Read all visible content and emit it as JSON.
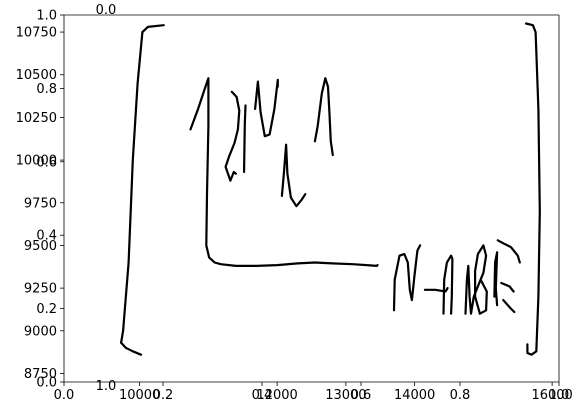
{
  "chart_data": {
    "type": "line",
    "title": "",
    "xlabel": "",
    "ylabel": "",
    "axes": [
      {
        "name": "main",
        "xlim": [
          8900,
          16100
        ],
        "ylim": [
          8700,
          10850
        ],
        "xticks": [
          10000,
          12000,
          13000,
          14000,
          16000
        ],
        "xtick_labels": [
          "10000",
          "12000",
          "13000",
          "14000",
          "16000"
        ],
        "yticks": [
          8750,
          9000,
          9250,
          9500,
          9750,
          10000,
          10250,
          10500,
          10750
        ],
        "ytick_labels": [
          "8750",
          "9000",
          "9250",
          "9500",
          "9750",
          "10000",
          "10250",
          "10500",
          "10750"
        ]
      },
      {
        "name": "overlay",
        "xlim": [
          0,
          1
        ],
        "ylim": [
          0,
          1
        ],
        "xticks": [
          0,
          0.2,
          0.4,
          0.6,
          0.8,
          1.0
        ],
        "xtick_labels": [
          "0.0",
          "0.2",
          "0.4",
          "0.6",
          "0.8",
          "1.0"
        ],
        "yticks": [
          0,
          0.2,
          0.4,
          0.6,
          0.8,
          1.0
        ],
        "ytick_labels": [
          "0.0",
          "0.2",
          "0.4",
          "0.6",
          "0.8",
          "1.0"
        ]
      }
    ],
    "series": [
      {
        "values": [
          [
            10350,
            10790
          ],
          [
            10120,
            10780
          ],
          [
            10040,
            10750
          ],
          [
            9970,
            10450
          ],
          [
            9900,
            10000
          ],
          [
            9840,
            9400
          ],
          [
            9760,
            9000
          ],
          [
            9730,
            8930
          ],
          [
            9800,
            8900
          ],
          [
            9900,
            8880
          ],
          [
            10020,
            8860
          ]
        ]
      },
      {
        "values": [
          [
            10740,
            10180
          ],
          [
            10850,
            10300
          ],
          [
            10950,
            10420
          ],
          [
            11000,
            10480
          ],
          [
            11000,
            10200
          ],
          [
            10980,
            9800
          ],
          [
            10970,
            9500
          ],
          [
            11010,
            9430
          ],
          [
            11090,
            9400
          ],
          [
            11180,
            9390
          ],
          [
            11400,
            9380
          ],
          [
            11700,
            9380
          ],
          [
            12000,
            9385
          ],
          [
            12300,
            9395
          ],
          [
            12550,
            9400
          ],
          [
            12800,
            9395
          ],
          [
            13100,
            9390
          ],
          [
            13300,
            9385
          ],
          [
            13450,
            9380
          ],
          [
            13460,
            9385
          ]
        ]
      },
      {
        "values": [
          [
            11340,
            10400
          ],
          [
            11410,
            10370
          ],
          [
            11450,
            10290
          ],
          [
            11430,
            10180
          ],
          [
            11380,
            10100
          ],
          [
            11300,
            10020
          ],
          [
            11250,
            9960
          ],
          [
            11320,
            9880
          ],
          [
            11370,
            9930
          ],
          [
            11400,
            9920
          ]
        ]
      },
      {
        "values": [
          [
            11540,
            10320
          ],
          [
            11530,
            10210
          ],
          [
            11520,
            9950
          ],
          [
            11520,
            9930
          ]
        ]
      },
      {
        "values": [
          [
            11680,
            10300
          ],
          [
            11720,
            10460
          ],
          [
            11760,
            10280
          ],
          [
            11820,
            10140
          ],
          [
            11890,
            10150
          ],
          [
            11960,
            10300
          ],
          [
            12010,
            10470
          ],
          [
            12010,
            10430
          ]
        ]
      },
      {
        "values": [
          [
            12070,
            9790
          ],
          [
            12100,
            9930
          ],
          [
            12130,
            10090
          ],
          [
            12150,
            9920
          ],
          [
            12200,
            9780
          ],
          [
            12280,
            9730
          ],
          [
            12360,
            9770
          ],
          [
            12410,
            9800
          ]
        ]
      },
      {
        "values": [
          [
            12550,
            10110
          ],
          [
            12590,
            10200
          ],
          [
            12650,
            10390
          ],
          [
            12700,
            10480
          ],
          [
            12740,
            10430
          ],
          [
            12760,
            10280
          ],
          [
            12780,
            10110
          ],
          [
            12810,
            10030
          ]
        ]
      },
      {
        "values": [
          [
            13700,
            9120
          ],
          [
            13710,
            9300
          ],
          [
            13780,
            9440
          ],
          [
            13850,
            9450
          ],
          [
            13900,
            9400
          ],
          [
            13930,
            9240
          ],
          [
            13960,
            9180
          ],
          [
            14000,
            9330
          ],
          [
            14040,
            9470
          ],
          [
            14080,
            9500
          ]
        ]
      },
      {
        "values": [
          [
            14150,
            9240
          ],
          [
            14300,
            9240
          ],
          [
            14450,
            9230
          ],
          [
            14480,
            9250
          ]
        ]
      },
      {
        "values": [
          [
            14420,
            9100
          ],
          [
            14430,
            9300
          ],
          [
            14470,
            9400
          ],
          [
            14530,
            9440
          ],
          [
            14550,
            9420
          ],
          [
            14540,
            9200
          ],
          [
            14530,
            9100
          ]
        ]
      },
      {
        "values": [
          [
            14740,
            9100
          ],
          [
            14760,
            9300
          ],
          [
            14780,
            9380
          ],
          [
            14800,
            9200
          ],
          [
            14820,
            9100
          ],
          [
            14860,
            9200
          ],
          [
            14960,
            9300
          ],
          [
            15050,
            9230
          ],
          [
            15040,
            9120
          ],
          [
            14950,
            9100
          ],
          [
            14880,
            9200
          ],
          [
            14880,
            9350
          ],
          [
            14920,
            9450
          ],
          [
            15000,
            9500
          ],
          [
            15040,
            9440
          ],
          [
            15000,
            9340
          ],
          [
            14960,
            9300
          ]
        ]
      },
      {
        "values": [
          [
            15160,
            9200
          ],
          [
            15170,
            9400
          ],
          [
            15200,
            9460
          ],
          [
            15180,
            9250
          ],
          [
            15200,
            9150
          ]
        ]
      },
      {
        "values": [
          [
            15210,
            9530
          ],
          [
            15300,
            9510
          ],
          [
            15400,
            9490
          ],
          [
            15500,
            9440
          ],
          [
            15530,
            9400
          ]
        ]
      },
      {
        "values": [
          [
            15260,
            9280
          ],
          [
            15380,
            9260
          ],
          [
            15440,
            9230
          ]
        ]
      },
      {
        "values": [
          [
            15290,
            9180
          ],
          [
            15400,
            9130
          ],
          [
            15450,
            9110
          ]
        ]
      },
      {
        "values": [
          [
            15620,
            10800
          ],
          [
            15720,
            10790
          ],
          [
            15760,
            10750
          ],
          [
            15800,
            10300
          ],
          [
            15820,
            9700
          ],
          [
            15800,
            9200
          ],
          [
            15770,
            8880
          ],
          [
            15700,
            8860
          ],
          [
            15640,
            8870
          ],
          [
            15640,
            8920
          ]
        ]
      }
    ]
  }
}
